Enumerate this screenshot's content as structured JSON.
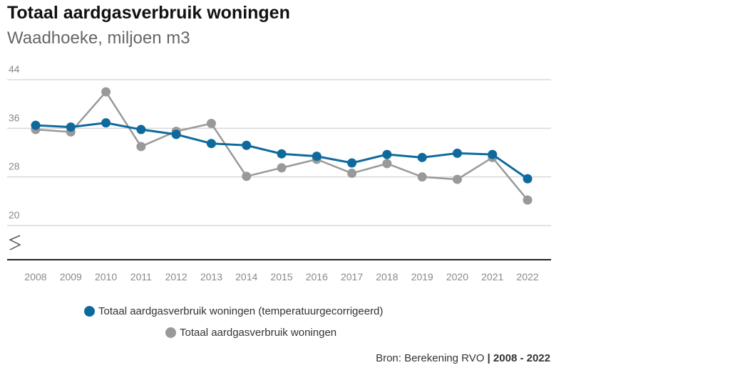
{
  "title": "Totaal aardgasverbruik woningen",
  "subtitle": "Waadhoeke, miljoen m3",
  "source": {
    "label": "Bron: Berekening RVO",
    "range": "2008 - 2022"
  },
  "chart_data": {
    "type": "line",
    "title": "Totaal aardgasverbruik woningen",
    "subtitle": "Waadhoeke, miljoen m3",
    "categories": [
      "2008",
      "2009",
      "2010",
      "2011",
      "2012",
      "2013",
      "2014",
      "2015",
      "2016",
      "2017",
      "2018",
      "2019",
      "2020",
      "2021",
      "2022"
    ],
    "yticks": [
      "20",
      "28",
      "36",
      "44"
    ],
    "ylim": [
      20,
      44
    ],
    "axis_break": true,
    "grid": true,
    "legend": "bottom",
    "series": [
      {
        "name": "Totaal aardgasverbruik woningen (temperatuurgecorrigeerd)",
        "color": "#0e6a9c",
        "values": [
          36.5,
          36.2,
          36.9,
          35.8,
          35.0,
          33.5,
          33.2,
          31.8,
          31.4,
          30.3,
          31.7,
          31.2,
          31.9,
          31.7,
          27.7
        ]
      },
      {
        "name": "Totaal aardgasverbruik woningen",
        "color": "#999999",
        "values": [
          35.8,
          35.4,
          42.0,
          33.0,
          35.5,
          36.8,
          28.1,
          29.5,
          30.9,
          28.6,
          30.2,
          28.0,
          27.6,
          31.2,
          24.2
        ]
      }
    ]
  }
}
